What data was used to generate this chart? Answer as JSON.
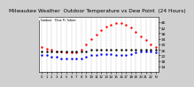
{
  "title": "Milwaukee Weather  Outdoor Temperature vs Dew Point  (24 Hours)",
  "title_fontsize": 4.2,
  "bg_color": "#d0d0d0",
  "plot_bg_color": "#ffffff",
  "x_hours": [
    0,
    1,
    2,
    3,
    4,
    5,
    6,
    7,
    8,
    9,
    10,
    11,
    12,
    13,
    14,
    15,
    16,
    17,
    18,
    19,
    20,
    21,
    22,
    23
  ],
  "temp": [
    28,
    27,
    26,
    25,
    25,
    24,
    24,
    24,
    26,
    30,
    34,
    37,
    40,
    43,
    44,
    45,
    45,
    44,
    42,
    39,
    36,
    33,
    30,
    28
  ],
  "dew": [
    22,
    22,
    21,
    21,
    20,
    20,
    20,
    20,
    20,
    21,
    22,
    22,
    23,
    23,
    23,
    22,
    22,
    22,
    23,
    24,
    25,
    25,
    25,
    24
  ],
  "indoor": [
    25,
    25,
    25,
    25,
    25,
    25,
    25,
    25,
    25,
    25,
    26,
    26,
    26,
    26,
    26,
    26,
    26,
    26,
    26,
    26,
    26,
    26,
    26,
    26
  ],
  "temp_color": "#ff0000",
  "dew_color": "#0000ff",
  "indoor_color": "#000000",
  "marker_size": 1.5,
  "ylim": [
    10,
    50
  ],
  "yticks": [
    14,
    18,
    22,
    26,
    30,
    34,
    38,
    42,
    46
  ],
  "grid_color": "#999999",
  "grid_style": "--",
  "xtick_labels": [
    "0",
    "1",
    "2",
    "3",
    "4",
    "5",
    "6",
    "7",
    "8",
    "9",
    "10",
    "11",
    "12",
    "13",
    "14",
    "15",
    "16",
    "17",
    "18",
    "19",
    "20",
    "21",
    "22",
    "N"
  ],
  "legend": [
    {
      "label": "Outdoor",
      "color": "#ff0000"
    },
    {
      "label": "Dew Pt",
      "color": "#0000ff"
    },
    {
      "label": "Indoor",
      "color": "#000000"
    }
  ]
}
